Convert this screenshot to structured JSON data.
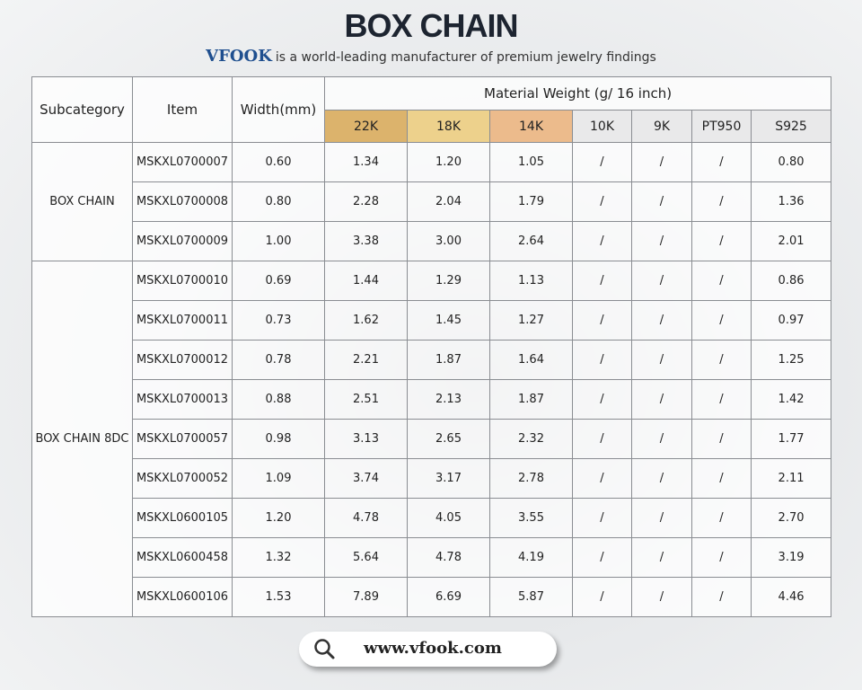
{
  "header": {
    "title": "BOX CHAIN",
    "brand": "VFOOK",
    "tagline": "is a world-leading manufacturer of premium jewelry findings"
  },
  "table": {
    "headers": [
      "Subcategory",
      "Item",
      "Width(mm)"
    ],
    "material_header": "Material Weight (g/ 16 inch)",
    "materials": [
      {
        "label": "22K",
        "color": "#dcb36c"
      },
      {
        "label": "18K",
        "color": "#edd18c"
      },
      {
        "label": "14K",
        "color": "#ecbb8c"
      },
      {
        "label": "10K",
        "color": "#e9e9ea"
      },
      {
        "label": "9K",
        "color": "#e9e9ea"
      },
      {
        "label": "PT950",
        "color": "#e9e9ea"
      },
      {
        "label": "S925",
        "color": "#e9e9ea"
      }
    ],
    "groups": [
      {
        "subcategory": "BOX CHAIN",
        "rows": [
          [
            "MSKXL0700007",
            "0.60",
            "1.34",
            "1.20",
            "1.05",
            "/",
            "/",
            "/",
            "0.80"
          ],
          [
            "MSKXL0700008",
            "0.80",
            "2.28",
            "2.04",
            "1.79",
            "/",
            "/",
            "/",
            "1.36"
          ],
          [
            "MSKXL0700009",
            "1.00",
            "3.38",
            "3.00",
            "2.64",
            "/",
            "/",
            "/",
            "2.01"
          ]
        ]
      },
      {
        "subcategory": "BOX CHAIN 8DC",
        "rows": [
          [
            "MSKXL0700010",
            "0.69",
            "1.44",
            "1.29",
            "1.13",
            "/",
            "/",
            "/",
            "0.86"
          ],
          [
            "MSKXL0700011",
            "0.73",
            "1.62",
            "1.45",
            "1.27",
            "/",
            "/",
            "/",
            "0.97"
          ],
          [
            "MSKXL0700012",
            "0.78",
            "2.21",
            "1.87",
            "1.64",
            "/",
            "/",
            "/",
            "1.25"
          ],
          [
            "MSKXL0700013",
            "0.88",
            "2.51",
            "2.13",
            "1.87",
            "/",
            "/",
            "/",
            "1.42"
          ],
          [
            "MSKXL0700057",
            "0.98",
            "3.13",
            "2.65",
            "2.32",
            "/",
            "/",
            "/",
            "1.77"
          ],
          [
            "MSKXL0700052",
            "1.09",
            "3.74",
            "3.17",
            "2.78",
            "/",
            "/",
            "/",
            "2.11"
          ],
          [
            "MSKXL0600105",
            "1.20",
            "4.78",
            "4.05",
            "3.55",
            "/",
            "/",
            "/",
            "2.70"
          ],
          [
            "MSKXL0600458",
            "1.32",
            "5.64",
            "4.78",
            "4.19",
            "/",
            "/",
            "/",
            "3.19"
          ],
          [
            "MSKXL0600106",
            "1.53",
            "7.89",
            "6.69",
            "5.87",
            "/",
            "/",
            "/",
            "4.46"
          ]
        ]
      }
    ]
  },
  "footer": {
    "url": "www.vfook.com"
  }
}
